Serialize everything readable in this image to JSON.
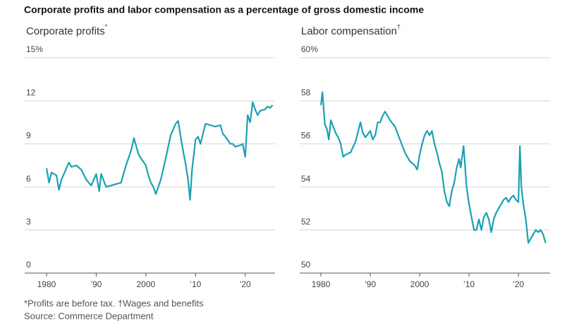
{
  "title": "Corporate profits and labor compensation as a percentage of gross domestic income",
  "note": "*Profits are before tax. †Wages and benefits",
  "source": "Source: Commerce Department",
  "chart_data": [
    {
      "type": "line",
      "title": "Corporate profits",
      "title_marker": "*",
      "color": "#1ba1b3",
      "grid": true,
      "xlim": [
        1975.6,
        2026
      ],
      "ylim": [
        0,
        15
      ],
      "xticks": [
        1980,
        {
          "value": 1990,
          "label": "’90"
        },
        2000,
        {
          "value": 2010,
          "label": "’10"
        },
        {
          "value": 2020,
          "label": "’20"
        }
      ],
      "yticks": [
        0,
        3,
        6,
        9,
        12,
        {
          "value": 15,
          "label": "15%"
        }
      ],
      "x": [
        1980,
        1980.5,
        1981,
        1982,
        1982.5,
        1983,
        1984,
        1984.5,
        1985,
        1986,
        1987,
        1988,
        1989,
        1990,
        1990.6,
        1991,
        1992,
        1993,
        1994,
        1995,
        1996,
        1997,
        1997.6,
        1998.5,
        1999,
        2000,
        2000.5,
        2001,
        2001.5,
        2002,
        2003,
        2004,
        2005,
        2006,
        2006.5,
        2007,
        2007.5,
        2008,
        2008.5,
        2008.9,
        2009.3,
        2010,
        2010.5,
        2011,
        2011.5,
        2012,
        2013,
        2014,
        2015,
        2015.5,
        2016,
        2017,
        2017.5,
        2018,
        2019,
        2019.5,
        2020,
        2020.5,
        2021,
        2021.5,
        2022,
        2022.5,
        2023,
        2024,
        2024.5,
        2025,
        2025.5
      ],
      "values": [
        7.3,
        6.3,
        7.0,
        6.8,
        5.8,
        6.5,
        7.3,
        7.7,
        7.4,
        7.5,
        7.2,
        6.5,
        6.1,
        6.9,
        5.7,
        6.9,
        6.0,
        6.1,
        6.2,
        6.3,
        7.5,
        8.5,
        9.4,
        8.3,
        8.0,
        7.5,
        6.8,
        6.3,
        6.0,
        5.5,
        6.5,
        8.0,
        9.6,
        10.4,
        10.6,
        9.5,
        8.5,
        7.6,
        6.5,
        5.1,
        7.2,
        9.3,
        9.5,
        9.0,
        9.7,
        10.4,
        10.3,
        10.2,
        10.3,
        9.7,
        9.5,
        9.0,
        9.0,
        8.8,
        8.9,
        9.0,
        8.1,
        11.0,
        10.5,
        11.9,
        11.4,
        11.0,
        11.3,
        11.4,
        11.6,
        11.5,
        11.7
      ]
    },
    {
      "type": "line",
      "title": "Labor compensation",
      "title_marker": "†",
      "color": "#1ba1b3",
      "grid": true,
      "xlim": [
        1975.7,
        2026.4
      ],
      "ylim": [
        50,
        60
      ],
      "xticks": [
        1980,
        {
          "value": 1990,
          "label": "’90"
        },
        2000,
        {
          "value": 2010,
          "label": "’10"
        },
        {
          "value": 2020,
          "label": "’20"
        }
      ],
      "yticks": [
        50,
        52,
        54,
        56,
        58,
        {
          "value": 60,
          "label": "60%"
        }
      ],
      "x": [
        1980,
        1980.3,
        1980.8,
        1981.2,
        1981.6,
        1982,
        1982.5,
        1983,
        1983.5,
        1984,
        1984.5,
        1985,
        1986,
        1987,
        1988,
        1988.5,
        1989,
        1990,
        1990.5,
        1991,
        1991.5,
        1992,
        1992.5,
        1993,
        1994,
        1995,
        1996,
        1997,
        1998,
        1999,
        1999.5,
        2000,
        2000.5,
        2001,
        2001.5,
        2002,
        2002.5,
        2003,
        2003.5,
        2004,
        2004.5,
        2005,
        2005.5,
        2006,
        2006.5,
        2007,
        2007.5,
        2008,
        2008.3,
        2008.9,
        2009.5,
        2010,
        2010.5,
        2011,
        2011.5,
        2012,
        2012.5,
        2013,
        2013.5,
        2014,
        2014.5,
        2015,
        2015.5,
        2016,
        2016.5,
        2017,
        2017.5,
        2018,
        2018.5,
        2019,
        2019.5,
        2020,
        2020.3,
        2020.6,
        2021,
        2021.5,
        2022,
        2022.5,
        2023,
        2023.5,
        2024,
        2024.5,
        2025,
        2025.5
      ],
      "values": [
        57.8,
        58.4,
        56.9,
        56.7,
        56.2,
        57.1,
        56.8,
        56.5,
        56.3,
        56.0,
        55.4,
        55.5,
        55.6,
        56.1,
        57.0,
        56.5,
        56.3,
        56.6,
        56.2,
        56.4,
        57.0,
        57.0,
        57.3,
        57.5,
        57.1,
        56.8,
        56.2,
        55.6,
        55.2,
        55.0,
        54.8,
        55.5,
        56.0,
        56.4,
        56.6,
        56.4,
        56.6,
        56.0,
        55.6,
        55.1,
        54.7,
        53.8,
        53.3,
        53.1,
        53.8,
        54.2,
        54.9,
        55.3,
        54.9,
        55.9,
        54.0,
        53.2,
        52.6,
        52.0,
        52.0,
        52.5,
        52.0,
        52.6,
        52.8,
        52.5,
        51.9,
        52.5,
        52.8,
        53.0,
        53.2,
        53.4,
        53.5,
        53.3,
        53.5,
        53.6,
        53.4,
        53.3,
        55.9,
        54.0,
        53.2,
        52.5,
        51.4,
        51.6,
        51.8,
        52.0,
        51.9,
        52.0,
        51.8,
        51.4
      ]
    }
  ]
}
